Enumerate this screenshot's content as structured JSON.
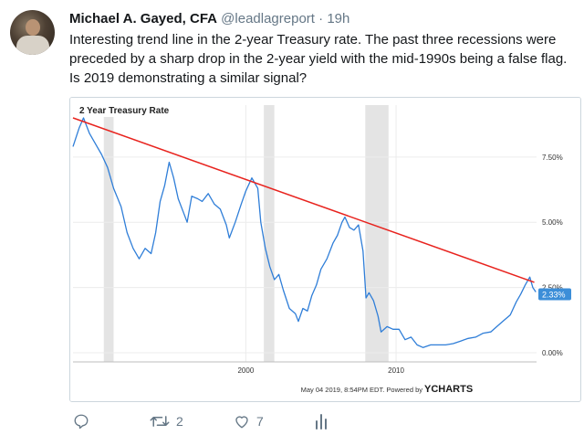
{
  "tweet": {
    "author_name": "Michael A. Gayed, CFA",
    "handle": "@leadlagreport",
    "separator": "·",
    "time": "19h",
    "text": "Interesting trend line in the 2-year Treasury rate. The past three recessions were preceded by a sharp drop in the 2-year yield with the mid-1990s being a false flag. Is 2019 demonstrating a similar signal?",
    "retweets": "2",
    "likes": "7"
  },
  "icons": {
    "reply": "reply-icon",
    "retweet": "retweet-icon",
    "like": "heart-icon",
    "analytics": "analytics-icon"
  },
  "colors": {
    "series_line": "#2f7ed8",
    "trend_line": "#e8231e",
    "recession_band": "#e4e4e4",
    "last_value_badge": "#3c8ed8"
  },
  "chart_data": {
    "type": "line",
    "title": "2 Year Treasury Rate",
    "xlabel": "",
    "ylabel": "",
    "xlim": [
      1988.5,
      2019.35
    ],
    "ylim": [
      -0.35,
      9.0
    ],
    "x_ticks": [
      2000,
      2010
    ],
    "x_tick_labels": [
      "2000",
      "2010"
    ],
    "y_ticks": [
      0,
      2.5,
      5,
      7.5
    ],
    "y_tick_labels": [
      "0.00%",
      "2.50%",
      "5.00%",
      "7.50%"
    ],
    "grid": true,
    "recessions": [
      [
        1990.55,
        1991.2
      ],
      [
        2001.2,
        2001.9
      ],
      [
        2007.95,
        2009.5
      ]
    ],
    "series": [
      {
        "name": "2 Year Treasury Rate",
        "x": [
          1988.5,
          1988.9,
          1989.2,
          1989.6,
          1990.0,
          1990.4,
          1990.8,
          1991.2,
          1991.7,
          1992.1,
          1992.5,
          1992.9,
          1993.3,
          1993.7,
          1994.0,
          1994.3,
          1994.6,
          1994.9,
          1995.2,
          1995.5,
          1995.9,
          1996.1,
          1996.4,
          1996.8,
          1997.1,
          1997.5,
          1997.9,
          1998.3,
          1998.7,
          1998.9,
          1999.3,
          1999.7,
          2000.0,
          2000.4,
          2000.8,
          2001.0,
          2001.3,
          2001.6,
          2001.9,
          2002.2,
          2002.5,
          2002.9,
          2003.3,
          2003.5,
          2003.8,
          2004.1,
          2004.4,
          2004.7,
          2005.0,
          2005.4,
          2005.8,
          2006.1,
          2006.4,
          2006.6,
          2006.9,
          2007.2,
          2007.5,
          2007.8,
          2008.0,
          2008.2,
          2008.5,
          2008.8,
          2009.0,
          2009.4,
          2009.8,
          2010.2,
          2010.6,
          2011.0,
          2011.4,
          2011.8,
          2012.3,
          2012.8,
          2013.3,
          2013.8,
          2014.3,
          2014.8,
          2015.3,
          2015.8,
          2016.3,
          2016.8,
          2017.2,
          2017.6,
          2018.0,
          2018.3,
          2018.6,
          2018.9,
          2019.1,
          2019.3
        ],
        "values": [
          7.9,
          8.6,
          9.0,
          8.4,
          8.0,
          7.6,
          7.1,
          6.3,
          5.6,
          4.6,
          4.0,
          3.6,
          4.0,
          3.8,
          4.6,
          5.8,
          6.4,
          7.3,
          6.7,
          5.9,
          5.3,
          5.0,
          6.0,
          5.9,
          5.8,
          6.1,
          5.7,
          5.5,
          4.9,
          4.4,
          5.0,
          5.7,
          6.2,
          6.7,
          6.3,
          5.0,
          4.0,
          3.3,
          2.8,
          3.0,
          2.4,
          1.7,
          1.5,
          1.2,
          1.7,
          1.6,
          2.2,
          2.6,
          3.2,
          3.6,
          4.2,
          4.5,
          5.0,
          5.2,
          4.8,
          4.7,
          4.9,
          3.9,
          2.1,
          2.3,
          2.0,
          1.4,
          0.8,
          1.0,
          0.9,
          0.9,
          0.5,
          0.6,
          0.3,
          0.2,
          0.3,
          0.3,
          0.3,
          0.35,
          0.45,
          0.55,
          0.6,
          0.75,
          0.8,
          1.05,
          1.25,
          1.45,
          1.95,
          2.25,
          2.6,
          2.9,
          2.5,
          2.33
        ]
      }
    ],
    "trend_line": {
      "x": [
        1988.5,
        2019.2
      ],
      "values": [
        9.0,
        2.7
      ]
    },
    "last_value_label": "2.33%",
    "footer_text": "May 04 2019, 8:54PM EDT.  Powered by",
    "brand_text": "YCHARTS"
  }
}
